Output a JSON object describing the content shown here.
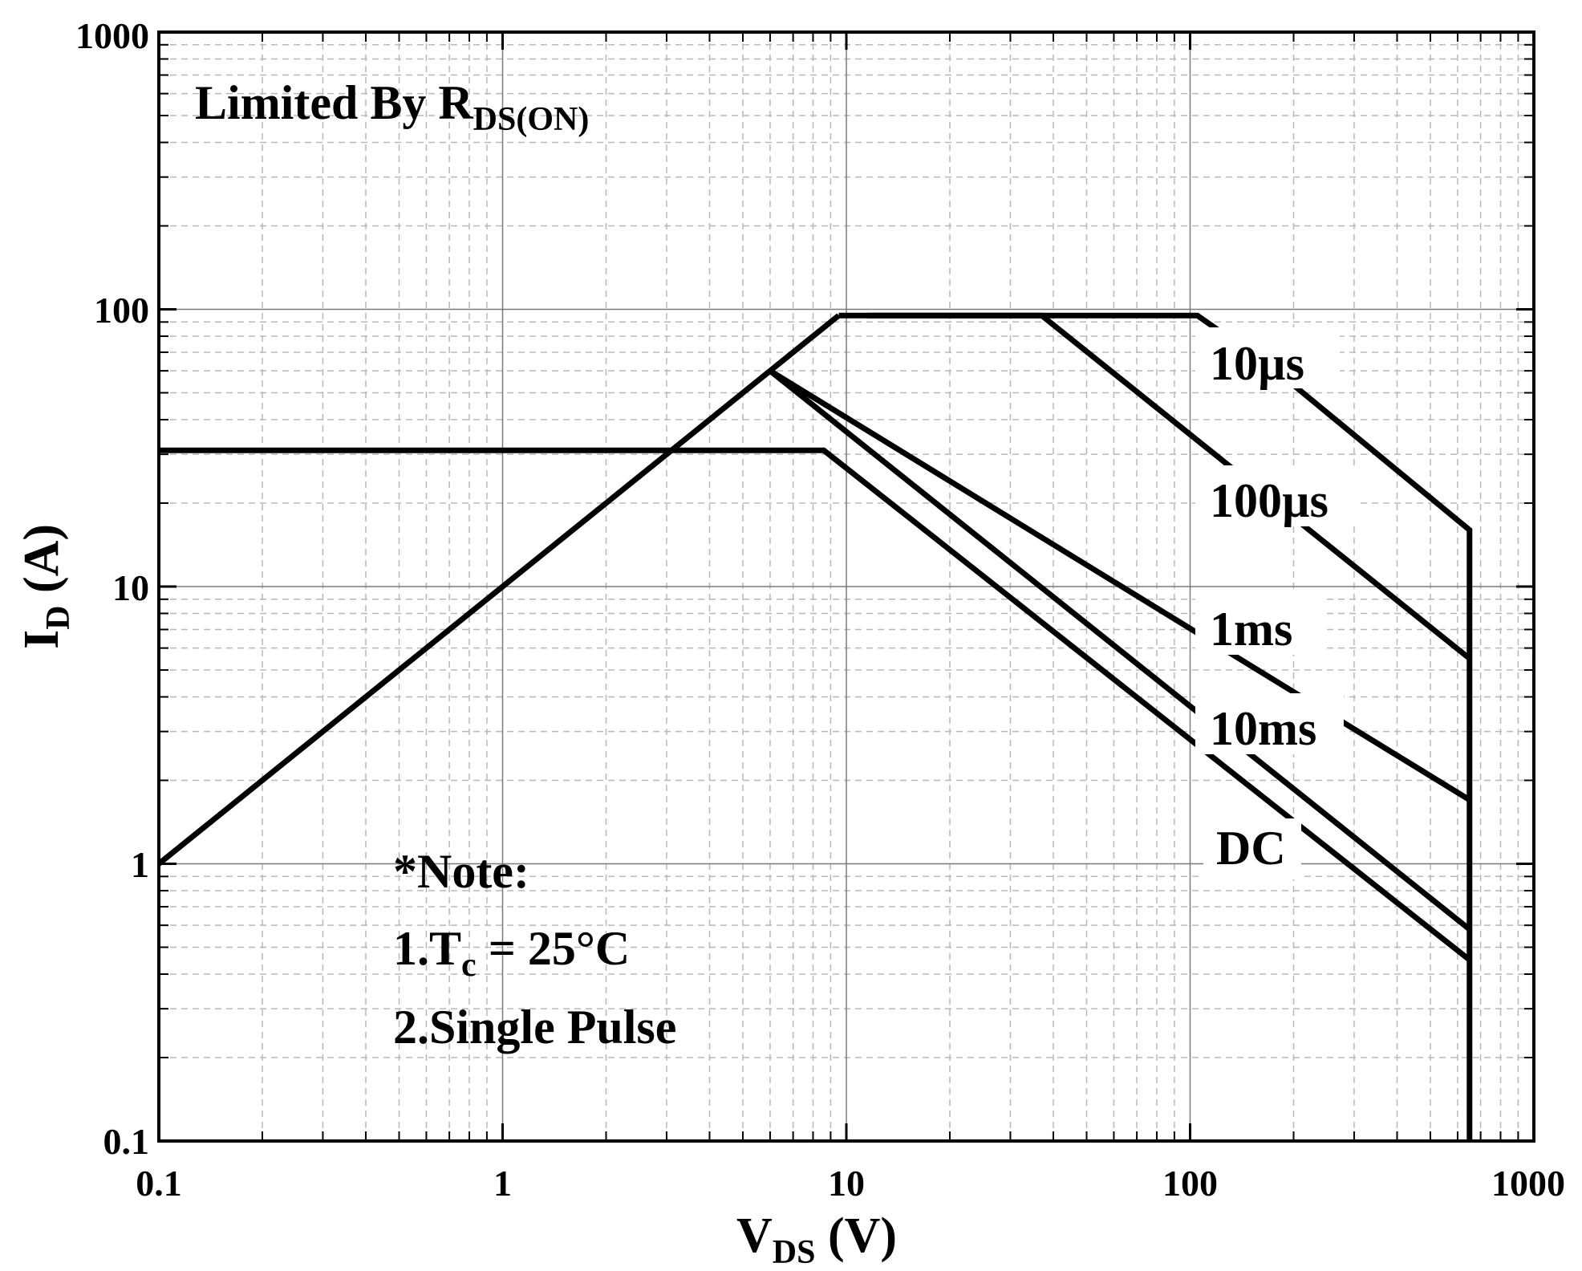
{
  "chart_data": {
    "type": "line",
    "title": "",
    "xlabel": {
      "main": "V",
      "sub": "DS",
      "unit": "(V)"
    },
    "ylabel": {
      "main": "I",
      "sub": "D",
      "unit": "(A)"
    },
    "xscale": "log",
    "yscale": "log",
    "xlim": [
      0.1,
      1000
    ],
    "ylim": [
      0.1,
      1000
    ],
    "grid": true,
    "xticks": [
      "0.1",
      "1",
      "10",
      "100",
      "1000"
    ],
    "yticks": [
      "0.1",
      "1",
      "10",
      "100",
      "1000"
    ],
    "series": [
      {
        "name": "Limited By RDS(ON)",
        "x": [
          0.1,
          9.5
        ],
        "y": [
          1,
          95
        ]
      },
      {
        "name": "10µs",
        "label": "10µs",
        "x": [
          9.5,
          105,
          178,
          650,
          650,
          650
        ],
        "y": [
          95,
          95,
          60,
          16,
          16,
          0.1
        ]
      },
      {
        "name": "100µs",
        "label": "100µs",
        "x": [
          11.5,
          37,
          650
        ],
        "y": [
          95,
          95,
          5.5
        ]
      },
      {
        "name": "1ms",
        "label": "1ms",
        "x": [
          6,
          650
        ],
        "y": [
          60,
          1.7
        ]
      },
      {
        "name": "10ms",
        "label": "10ms",
        "x": [
          6,
          650
        ],
        "y": [
          60,
          0.58
        ]
      },
      {
        "name": "DC",
        "label": "DC",
        "x": [
          0.1,
          8.6,
          650
        ],
        "y": [
          31,
          31,
          0.45
        ]
      }
    ],
    "annotations": {
      "limit": {
        "text": "Limited By R",
        "sub": "DS(ON)"
      },
      "note_title": "*Note:",
      "note_1": {
        "text": "1.T",
        "sub": "c",
        "rest": " = 25°C"
      },
      "note_2": "2.Single Pulse"
    },
    "curve_labels": [
      "10µs",
      "100µs",
      "1ms",
      "10ms",
      "DC"
    ]
  }
}
